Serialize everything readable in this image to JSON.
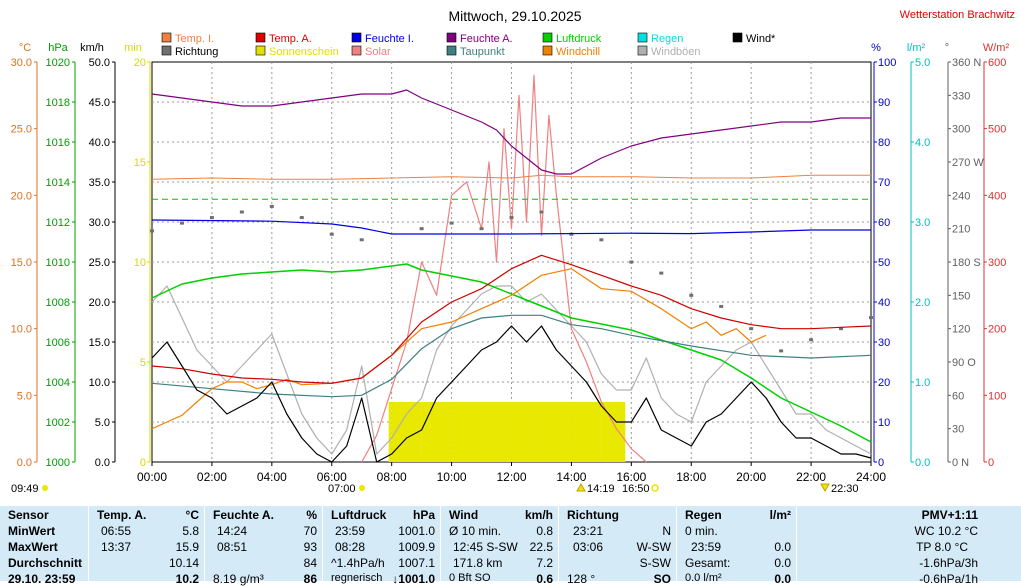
{
  "chart_data": {
    "type": "line",
    "title": "Mittwoch, 29.10.2025",
    "station": "Wetterstation Brachwitz",
    "x_ticks": [
      "00:00",
      "02:00",
      "04:00",
      "06:00",
      "08:00",
      "10:00",
      "12:00",
      "14:00",
      "16:00",
      "18:00",
      "20:00",
      "22:00",
      "24:00"
    ],
    "axes": {
      "temp_c": {
        "unit": "°C",
        "ticks": [
          "0.0",
          "5.0",
          "10.0",
          "15.0",
          "20.0",
          "25.0",
          "30.0"
        ],
        "range": [
          0,
          30
        ],
        "color": "#e07020"
      },
      "pressure_hpa": {
        "unit": "hPa",
        "ticks": [
          "1000",
          "1002",
          "1004",
          "1006",
          "1008",
          "1010",
          "1012",
          "1014",
          "1016",
          "1018",
          "1020"
        ],
        "range": [
          1000,
          1020
        ],
        "color": "#00a000"
      },
      "wind_kmh": {
        "unit": "km/h",
        "ticks": [
          "0.0",
          "5.0",
          "10.0",
          "15.0",
          "20.0",
          "25.0",
          "30.0",
          "35.0",
          "40.0",
          "45.0",
          "50.0"
        ],
        "range": [
          0,
          50
        ],
        "color": "#000000"
      },
      "sun_min": {
        "unit": "min",
        "ticks": [
          "0",
          "5",
          "10",
          "15",
          "20"
        ],
        "range": [
          0,
          20
        ],
        "color": "#d8d800"
      },
      "humidity_pct": {
        "unit": "%",
        "ticks": [
          "0",
          "10",
          "20",
          "30",
          "40",
          "50",
          "60",
          "70",
          "80",
          "90",
          "100"
        ],
        "range": [
          0,
          100
        ],
        "color": "#0000cc"
      },
      "rain_lm2": {
        "unit": "l/m²",
        "ticks": [
          "0.0",
          "1.0",
          "2.0",
          "3.0",
          "4.0",
          "5.0"
        ],
        "range": [
          0,
          5
        ],
        "color": "#00c0c0"
      },
      "direction_deg": {
        "unit": "°",
        "ticks": [
          "0 N",
          "30",
          "60",
          "90 O",
          "120",
          "150",
          "180 S",
          "210",
          "240",
          "270 W",
          "300",
          "330",
          "360 N"
        ],
        "range": [
          0,
          360
        ],
        "color": "#606060"
      },
      "solar_wm2": {
        "unit": "W/m²",
        "ticks": [
          "0",
          "100",
          "200",
          "300",
          "400",
          "500",
          "600"
        ],
        "range": [
          0,
          600
        ],
        "color": "#e03030"
      }
    },
    "legend": [
      {
        "label": "Temp. I.",
        "color": "#f08040"
      },
      {
        "label": "Temp. A.",
        "color": "#e00000"
      },
      {
        "label": "Feuchte I.",
        "color": "#0000e0"
      },
      {
        "label": "Feuchte A.",
        "color": "#800080"
      },
      {
        "label": "Luftdruck",
        "color": "#00d000"
      },
      {
        "label": "Regen",
        "color": "#00e0e0"
      },
      {
        "label": "Wind*",
        "color": "#000000"
      },
      {
        "label": "Richtung",
        "color": "#707070"
      },
      {
        "label": "Sonnenschein",
        "color": "#e0e000"
      },
      {
        "label": "Solar",
        "color": "#f08080"
      },
      {
        "label": "Taupunkt",
        "color": "#408080"
      },
      {
        "label": "Windchill",
        "color": "#f08000"
      },
      {
        "label": "Windböen",
        "color": "#b0b0b0"
      }
    ],
    "markers": {
      "sunrise": "07:00",
      "sunset": "16:50",
      "solar_noon": "14:19",
      "moonrise": "09:49",
      "moonset": "22:30"
    },
    "series": [
      {
        "name": "Temp. I.",
        "axis": "temp_c",
        "x": [
          0,
          2,
          4,
          6,
          8,
          10,
          12,
          13,
          14,
          16,
          18,
          20,
          22,
          24
        ],
        "y": [
          21.2,
          21.3,
          21.2,
          21.2,
          21.3,
          21.4,
          21.3,
          21.5,
          21.4,
          21.4,
          21.3,
          21.3,
          21.5,
          21.5
        ]
      },
      {
        "name": "Temp. A.",
        "axis": "temp_c",
        "x": [
          0,
          1,
          2,
          3,
          4,
          5,
          6,
          7,
          8,
          9,
          10,
          11,
          12,
          13,
          14,
          15,
          16,
          17,
          18,
          19,
          20,
          21,
          22,
          23,
          24
        ],
        "y": [
          7.2,
          7.0,
          6.6,
          6.3,
          6.2,
          6.0,
          5.9,
          6.3,
          8.0,
          10.5,
          12.0,
          13.0,
          14.5,
          15.5,
          14.8,
          14.0,
          13.2,
          12.5,
          11.5,
          10.8,
          10.3,
          10.0,
          10.0,
          10.1,
          10.2
        ]
      },
      {
        "name": "Feuchte I.",
        "axis": "humidity_pct",
        "x": [
          0,
          4,
          6,
          7,
          8,
          12,
          16,
          18,
          20,
          22,
          24
        ],
        "y": [
          60.5,
          60.2,
          59.5,
          58.5,
          57,
          57,
          57.2,
          57.1,
          57.5,
          58,
          58
        ]
      },
      {
        "name": "Feuchte A.",
        "axis": "humidity_pct",
        "x": [
          0,
          1,
          2,
          3,
          4,
          5,
          6,
          7,
          8,
          8.5,
          9,
          10,
          11,
          11.5,
          12,
          13,
          13.5,
          14,
          15,
          16,
          17,
          18,
          19,
          20,
          21,
          22,
          23,
          24
        ],
        "y": [
          92,
          91,
          90,
          89,
          89,
          90,
          91,
          92,
          92,
          93,
          91,
          88,
          85,
          83,
          79,
          73,
          72,
          72,
          76,
          79,
          81,
          82,
          83,
          84,
          85,
          85,
          86,
          86
        ]
      },
      {
        "name": "Luftdruck",
        "axis": "pressure_hpa",
        "x": [
          0,
          1,
          2,
          3,
          4,
          5,
          6,
          7,
          8,
          8.5,
          9,
          10,
          11,
          12,
          13,
          14,
          15,
          16,
          17,
          18,
          19,
          20,
          21,
          22,
          23,
          24
        ],
        "y": [
          1008.2,
          1008.9,
          1009.2,
          1009.4,
          1009.5,
          1009.6,
          1009.5,
          1009.6,
          1009.8,
          1009.9,
          1009.6,
          1009.3,
          1009.0,
          1008.4,
          1007.8,
          1007.2,
          1006.9,
          1006.6,
          1006.1,
          1005.6,
          1005.1,
          1004.2,
          1003.2,
          1002.5,
          1001.8,
          1001.0
        ]
      },
      {
        "name": "Taupunkt",
        "axis": "temp_c",
        "x": [
          0,
          2,
          4,
          6,
          7,
          8,
          9,
          10,
          11,
          12,
          13,
          14,
          15,
          16,
          18,
          20,
          22,
          24
        ],
        "y": [
          5.9,
          5.5,
          5.1,
          4.9,
          5.0,
          6.2,
          8.5,
          10.0,
          10.8,
          11.0,
          11.0,
          10.3,
          10.0,
          9.5,
          8.7,
          8.0,
          7.8,
          8.0
        ]
      },
      {
        "name": "Wind*",
        "axis": "wind_kmh",
        "x": [
          0,
          0.5,
          1,
          1.5,
          2,
          2.5,
          3,
          3.5,
          4,
          4.5,
          5,
          5.5,
          6,
          6.5,
          7,
          7.5,
          8,
          8.5,
          9,
          9.5,
          10,
          10.5,
          11,
          11.5,
          12,
          12.5,
          13,
          13.5,
          14,
          14.5,
          15,
          15.5,
          16,
          16.5,
          17,
          17.5,
          18,
          18.5,
          19,
          19.5,
          20,
          20.5,
          21,
          21.5,
          22,
          22.5,
          23,
          23.5,
          24
        ],
        "y": [
          13,
          15,
          12,
          9,
          8,
          6,
          7,
          8,
          10,
          6,
          3,
          1,
          0,
          2,
          8,
          0,
          1,
          3,
          4,
          8,
          10,
          12,
          14,
          15,
          17,
          15,
          17,
          14,
          12,
          10,
          7,
          5,
          5,
          8,
          4,
          3,
          2,
          5,
          6,
          8,
          10,
          8,
          5,
          3,
          3,
          2,
          1,
          1,
          0.5
        ]
      },
      {
        "name": "Windböen",
        "axis": "wind_kmh",
        "x": [
          0,
          0.5,
          1,
          1.5,
          2,
          2.5,
          3,
          3.5,
          4,
          4.5,
          5,
          5.5,
          6,
          6.5,
          7,
          7.5,
          8,
          8.5,
          9,
          9.5,
          10,
          10.5,
          11,
          11.5,
          12,
          12.5,
          13,
          13.5,
          14,
          14.5,
          15,
          15.5,
          16,
          16.5,
          17,
          17.5,
          18,
          18.5,
          19,
          19.5,
          20,
          20.5,
          21,
          21.5,
          22,
          22.5,
          23,
          23.5,
          24
        ],
        "y": [
          20,
          22,
          18,
          14,
          12,
          10,
          12,
          14,
          16,
          11,
          6,
          3,
          1,
          4,
          12,
          1,
          3,
          6,
          8,
          14,
          17,
          19,
          21,
          22,
          22,
          20,
          21,
          19,
          17,
          15,
          11,
          9,
          9,
          13,
          8,
          6,
          5,
          10,
          12,
          14,
          15,
          12,
          9,
          6,
          6,
          4,
          3,
          2,
          1
        ]
      },
      {
        "name": "Windchill",
        "axis": "temp_c",
        "x": [
          0,
          0.5,
          1,
          1.5,
          2,
          2.5,
          3,
          3.5,
          4,
          4.5,
          5,
          6,
          7,
          8,
          9,
          10,
          11,
          12,
          13,
          14,
          15,
          16,
          17,
          18,
          18.5,
          19,
          19.5,
          20,
          20.5
        ],
        "y": [
          2.5,
          3.0,
          3.5,
          4.5,
          5.5,
          6.0,
          6.0,
          5.5,
          5.8,
          6.2,
          5.8,
          5.9,
          6.3,
          8.0,
          10.0,
          10.5,
          11.5,
          12.5,
          14.0,
          14.5,
          13.0,
          12.8,
          11.5,
          10.0,
          10.5,
          9.5,
          10.0,
          9.0,
          9.5
        ]
      },
      {
        "name": "Solar",
        "axis": "solar_wm2",
        "x": [
          7,
          7.5,
          8,
          8.5,
          9,
          9.5,
          10,
          10.5,
          11,
          11.25,
          11.5,
          11.75,
          12,
          12.25,
          12.5,
          12.75,
          13,
          13.25,
          13.5,
          14,
          14.5,
          15,
          15.5,
          16,
          16.5
        ],
        "y": [
          0,
          40,
          110,
          180,
          300,
          250,
          400,
          420,
          350,
          450,
          300,
          500,
          350,
          550,
          360,
          580,
          340,
          520,
          400,
          200,
          150,
          90,
          50,
          20,
          0
        ]
      },
      {
        "name": "Richtung",
        "axis": "direction_deg",
        "x": [
          0,
          1,
          2,
          3,
          4,
          5,
          6,
          7,
          9,
          10,
          11,
          12,
          13,
          14,
          15,
          16,
          17,
          18,
          19,
          20,
          21,
          22,
          23,
          24
        ],
        "y": [
          208,
          215,
          220,
          225,
          230,
          220,
          205,
          200,
          210,
          215,
          210,
          220,
          225,
          205,
          200,
          180,
          170,
          150,
          140,
          120,
          100,
          110,
          120,
          130
        ]
      },
      {
        "name": "Sonnenschein",
        "axis": "sun_min",
        "x": [
          7.9,
          8,
          9,
          10,
          11,
          11.5,
          12,
          13,
          14,
          15,
          15.8
        ],
        "y": [
          0,
          3,
          3,
          3,
          3,
          3,
          3,
          3,
          3,
          3,
          0
        ]
      },
      {
        "name": "Reference",
        "axis": "temp_c",
        "x": [
          0,
          24
        ],
        "y": [
          19.7,
          19.7
        ]
      }
    ]
  },
  "table": {
    "headers": {
      "sensor": "Sensor",
      "temp": "Temp. A.",
      "temp_unit": "°C",
      "hum": "Feuchte A.",
      "hum_unit": "%",
      "press": "Luftdruck",
      "press_unit": "hPa",
      "wind": "Wind",
      "wind_unit": "km/h",
      "dir": "Richtung",
      "rain": "Regen",
      "rain_unit": "l/m²",
      "pmv": "PMV+1:11"
    },
    "rows": [
      {
        "label": "MinWert",
        "temp_time": "06:55",
        "temp_val": "5.8",
        "hum_time": "14:24",
        "hum_val": "70",
        "press_time": "23:59",
        "press_val": "1001.0",
        "wind_desc": "Ø 10 min.",
        "wind_val": "0.8",
        "dir_time": "23:21",
        "dir_val": "N",
        "rain_desc": "0 min.",
        "rain_val": "",
        "extra": "WC 10.2 °C"
      },
      {
        "label": "MaxWert",
        "temp_time": "13:37",
        "temp_val": "15.9",
        "hum_time": "08:51",
        "hum_val": "93",
        "press_time": "08:28",
        "press_val": "1009.9",
        "wind_desc": "12:45   S-SW",
        "wind_val": "22.5",
        "dir_time": "03:06",
        "dir_val": "W-SW",
        "rain_desc": "23:59",
        "rain_val": "0.0",
        "extra": "TP 8.0 °C"
      },
      {
        "label": "Durchschnitt",
        "temp_time": "",
        "temp_val": "10.14",
        "hum_time": "",
        "hum_val": "84",
        "press_time": "^1.4hPa/h",
        "press_val": "1007.1",
        "wind_desc": "171.8 km",
        "wind_val": "7.2",
        "dir_time": "",
        "dir_val": "S-SW",
        "rain_desc": "Gesamt:",
        "rain_val": "0.0",
        "extra": "-1.6hPa/3h"
      },
      {
        "label": "29.10. 23:59",
        "temp_time": "",
        "temp_val": "10.2",
        "hum_time": "8.19 g/m³",
        "hum_val": "86",
        "press_time": "regnerisch",
        "press_val": "↓1001.0",
        "wind_desc": "0 Bft SO",
        "wind_val": "0.6",
        "dir_time": "128 °",
        "dir_val": "SO",
        "rain_desc": "0.0 l/m²",
        "rain_val": "0.0",
        "extra": "-0.6hPa/1h"
      }
    ]
  }
}
